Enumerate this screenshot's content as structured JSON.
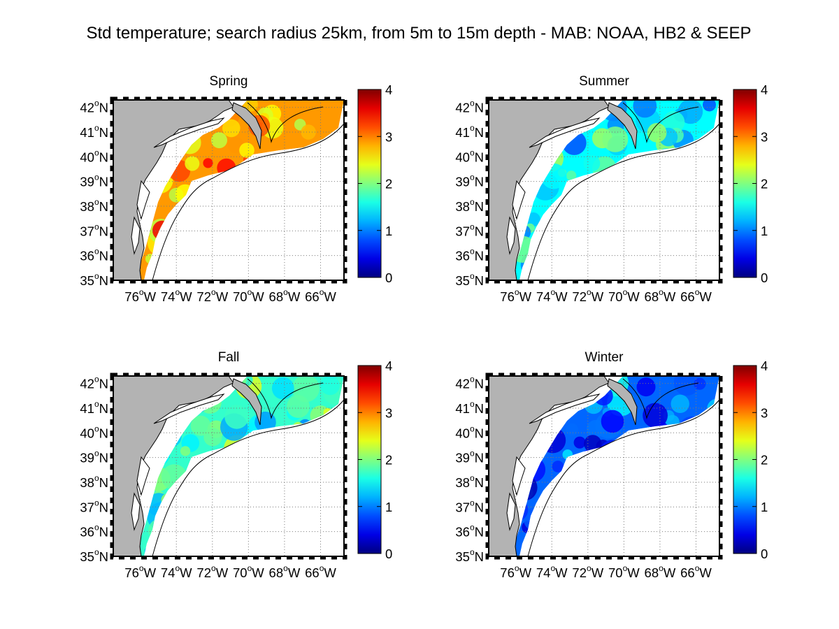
{
  "figure": {
    "title": "Std temperature; search radius 25km, from 5m to 15m depth - MAB: NOAA, HB2 & SEEP"
  },
  "map_axes": {
    "lon_ticks": [
      {
        "value": -76,
        "num": "76",
        "deg": "o",
        "hem": "W"
      },
      {
        "value": -74,
        "num": "74",
        "deg": "o",
        "hem": "W"
      },
      {
        "value": -72,
        "num": "72",
        "deg": "o",
        "hem": "W"
      },
      {
        "value": -70,
        "num": "70",
        "deg": "o",
        "hem": "W"
      },
      {
        "value": -68,
        "num": "68",
        "deg": "o",
        "hem": "W"
      },
      {
        "value": -66,
        "num": "66",
        "deg": "o",
        "hem": "W"
      }
    ],
    "lat_ticks": [
      {
        "value": 42,
        "num": "42",
        "deg": "o",
        "hem": "N"
      },
      {
        "value": 41,
        "num": "41",
        "deg": "o",
        "hem": "N"
      },
      {
        "value": 40,
        "num": "40",
        "deg": "o",
        "hem": "N"
      },
      {
        "value": 39,
        "num": "39",
        "deg": "o",
        "hem": "N"
      },
      {
        "value": 38,
        "num": "38",
        "deg": "o",
        "hem": "N"
      },
      {
        "value": 37,
        "num": "37",
        "deg": "o",
        "hem": "N"
      },
      {
        "value": 36,
        "num": "36",
        "deg": "o",
        "hem": "N"
      },
      {
        "value": 35,
        "num": "35",
        "deg": "o",
        "hem": "N"
      }
    ],
    "lon_range": [
      -77.5,
      -64.7
    ],
    "lat_range": [
      35,
      42.3
    ],
    "grid": true
  },
  "colorbar": {
    "ticks": [
      "0",
      "1",
      "2",
      "3",
      "4"
    ],
    "range": [
      0,
      4
    ],
    "colormap": "jet"
  },
  "colors": {
    "land": "#b3b3b3",
    "coast": "#000000",
    "contour": "#000000",
    "grid": "#7a7a7a"
  },
  "panels": [
    {
      "title": "Spring",
      "level": 2.9
    },
    {
      "title": "Summer",
      "level": 1.5
    },
    {
      "title": "Fall",
      "level": 1.7
    },
    {
      "title": "Winter",
      "level": 0.9
    }
  ]
}
